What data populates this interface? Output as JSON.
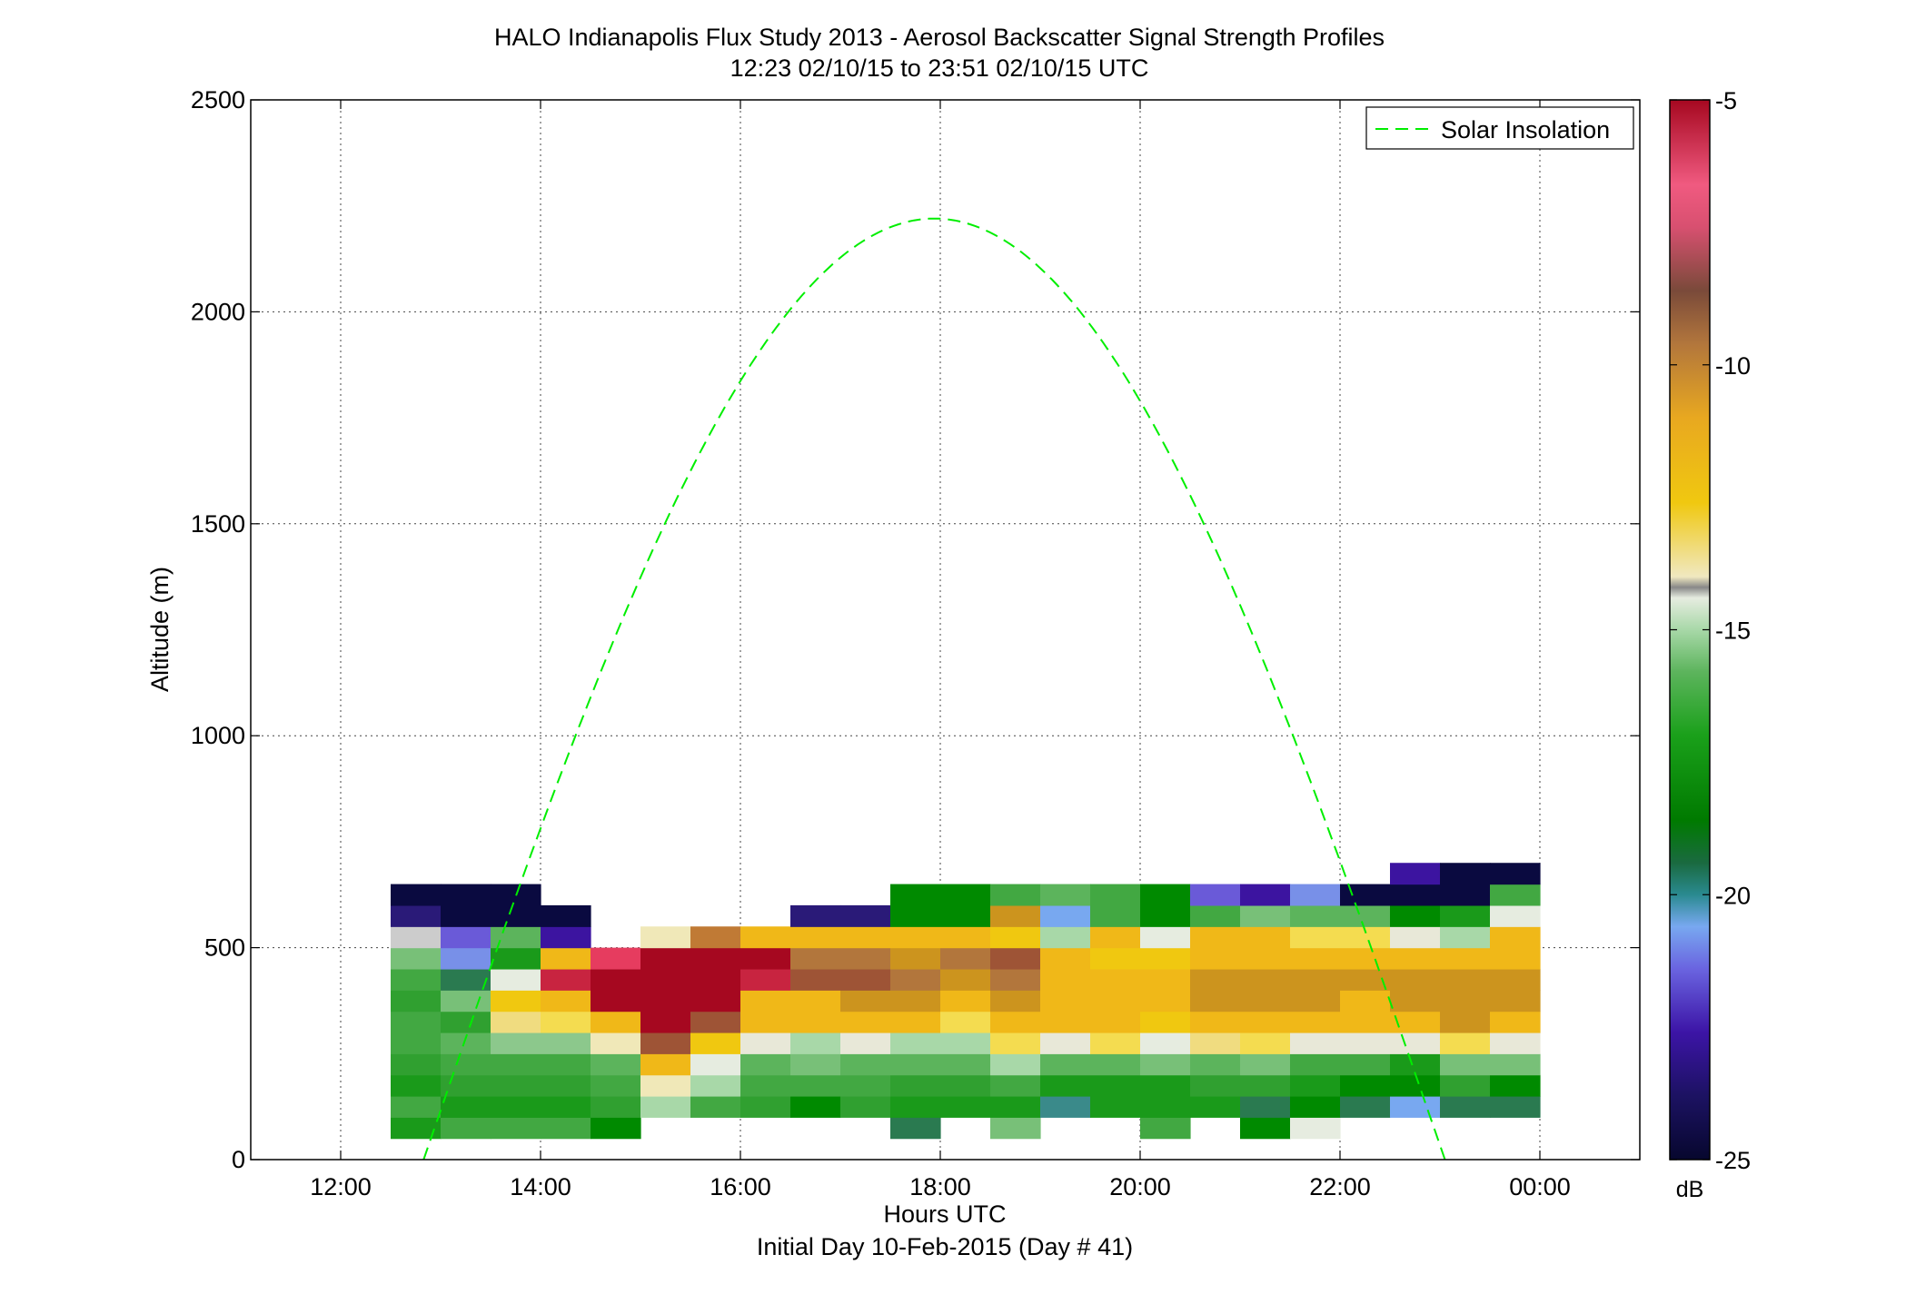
{
  "chart_data": {
    "type": "heatmap",
    "title": "HALO Indianapolis Flux Study 2013 - Aerosol Backscatter Signal Strength Profiles",
    "subtitle": "12:23 02/10/15 to 23:51 02/10/15  UTC",
    "xlabel": "Hours UTC",
    "xlabel2": "Initial Day 10-Feb-2015 (Day # 41)",
    "ylabel": "Altitude (m)",
    "xlim": [
      11.1,
      25.0
    ],
    "ylim": [
      0,
      2500
    ],
    "x_ticks": [
      12,
      14,
      16,
      18,
      20,
      22,
      24
    ],
    "x_tick_labels": [
      "12:00",
      "14:00",
      "16:00",
      "18:00",
      "20:00",
      "22:00",
      "00:00"
    ],
    "y_ticks": [
      0,
      500,
      1000,
      1500,
      2000,
      2500
    ],
    "y_tick_labels": [
      "0",
      "500",
      "1000",
      "1500",
      "2000",
      "2500"
    ],
    "grid": true,
    "legend": {
      "position": "top-right",
      "entries": [
        {
          "label": "Solar Insolation",
          "style": "dashed",
          "color": "#00ee00"
        }
      ]
    },
    "colorbar": {
      "unit": "dB",
      "range": [
        -25,
        -5
      ],
      "ticks": [
        -5,
        -10,
        -15,
        -20,
        -25
      ],
      "tick_labels": [
        "-5",
        "-10",
        "-15",
        "-20",
        "-25"
      ]
    },
    "cell_width_hours": 0.5,
    "cell_height_m": 50,
    "time_start": 12.5,
    "alt_start": 50,
    "columns": [
      [
        "g1",
        "g3",
        "g1",
        "g2",
        "g3",
        "g3",
        "g2",
        "g3",
        "g5",
        "b7",
        "p3",
        "b9"
      ],
      [
        "g3",
        "g1",
        "g2",
        "g3",
        "g4",
        "g2",
        "g5",
        "g8",
        "b3",
        "p2",
        "b9",
        "b9"
      ],
      [
        "g3",
        "g1",
        "g2",
        "g3",
        "g7",
        "y4",
        "y2",
        "w1",
        "g1",
        "g4",
        "b9",
        "b9"
      ],
      [
        "g3",
        "g1",
        "g2",
        "g3",
        "g7",
        "y3",
        "y1",
        "r2",
        "y1",
        "p1",
        "b9"
      ],
      [
        "g0",
        "g2",
        "g3",
        "g4",
        "w2",
        "y1",
        "r1",
        "r1",
        "r3"
      ],
      [
        "",
        "g6",
        "w2",
        "y1",
        "o3",
        "r1",
        "r1",
        "r1",
        "r1",
        "w2"
      ],
      [
        "",
        "g3",
        "g6",
        "w1",
        "y2",
        "o3",
        "r1",
        "r1",
        "r1",
        "o4"
      ],
      [
        "",
        "g2",
        "g3",
        "g4",
        "w0",
        "y1",
        "y1",
        "r2",
        "r1",
        "y1"
      ],
      [
        "",
        "g0",
        "g3",
        "g5",
        "g6",
        "y1",
        "y1",
        "o3",
        "o2",
        "y1",
        "p3"
      ],
      [
        "",
        "g2",
        "g3",
        "g4",
        "w0",
        "y1",
        "o1",
        "o3",
        "o2",
        "y1",
        "p3"
      ],
      [
        "g8",
        "g1",
        "g2",
        "g4",
        "g6",
        "y1",
        "o1",
        "o2",
        "o1",
        "y1",
        "g0",
        "g0"
      ],
      [
        "",
        "g1",
        "g2",
        "g4",
        "g6",
        "y3",
        "y1",
        "o1",
        "o2",
        "y1",
        "g0",
        "g0"
      ],
      [
        "g5",
        "g1",
        "g3",
        "g6",
        "y3",
        "y1",
        "o1",
        "o2",
        "o3",
        "y2",
        "o1",
        "g3"
      ],
      [
        "",
        "t1",
        "g1",
        "g4",
        "w0",
        "y1",
        "y1",
        "y1",
        "y1",
        "g6",
        "b2",
        "g4"
      ],
      [
        "",
        "g1",
        "g1",
        "g4",
        "y3",
        "y1",
        "y1",
        "y1",
        "y2",
        "y1",
        "g3",
        "g3"
      ],
      [
        "g3",
        "g1",
        "g1",
        "g5",
        "w1",
        "y2",
        "y1",
        "y1",
        "y2",
        "w1",
        "g0",
        "g0"
      ],
      [
        "",
        "g1",
        "g2",
        "g4",
        "y4",
        "y1",
        "o1",
        "o1",
        "y1",
        "y1",
        "g3",
        "p2"
      ],
      [
        "g0",
        "g8",
        "g2",
        "g5",
        "y3",
        "y1",
        "o1",
        "o1",
        "y1",
        "y1",
        "g5",
        "p1"
      ],
      [
        "w1",
        "g0",
        "g1",
        "g3",
        "w0",
        "y1",
        "o1",
        "o1",
        "y1",
        "y3",
        "g4",
        "b3"
      ],
      [
        "",
        "g8",
        "g0",
        "g3",
        "w0",
        "y1",
        "y1",
        "o1",
        "y1",
        "y3",
        "g4",
        "b9"
      ],
      [
        "",
        "b2",
        "g0",
        "g1",
        "w0",
        "y1",
        "o1",
        "o1",
        "y1",
        "w0",
        "g0",
        "b9",
        "p1"
      ],
      [
        "",
        "g8",
        "g2",
        "g5",
        "y3",
        "o1",
        "o1",
        "o1",
        "y1",
        "g6",
        "g1",
        "b9",
        "b9"
      ],
      [
        "",
        "g8",
        "g0",
        "g5",
        "w0",
        "y1",
        "o1",
        "o1",
        "y1",
        "y1",
        "w1",
        "g3",
        "b9"
      ]
    ],
    "solar_insolation_curve": {
      "peak_time": 17.93,
      "peak_altitude_m": 2220,
      "zero_crossings": [
        12.83,
        23.05
      ]
    }
  },
  "palette": {
    "r1": "#a60820",
    "r2": "#c82440",
    "r3": "#e63c5f",
    "o1": "#cc941e",
    "o2": "#b2763c",
    "o3": "#9e5436",
    "o4": "#c07a35",
    "y1": "#f0b818",
    "y2": "#f0c810",
    "y3": "#f4dc50",
    "y4": "#f0dc80",
    "w0": "#e8e8d8",
    "w1": "#e6ece0",
    "w2": "#f0e8b8",
    "g0": "#008a00",
    "g1": "#1a9a1a",
    "g2": "#30a030",
    "g3": "#42a842",
    "g4": "#5cb45c",
    "g5": "#78c078",
    "g6": "#a8d8a8",
    "g7": "#8cc88c",
    "g8": "#2a7a50",
    "t1": "#3a8a8a",
    "b2": "#78a8f0",
    "b3": "#7890e8",
    "p1": "#3c14a0",
    "p2": "#6a5ad8",
    "p3": "#2a1a78",
    "b9": "#0a0a40",
    "solar": "#00ee00"
  }
}
